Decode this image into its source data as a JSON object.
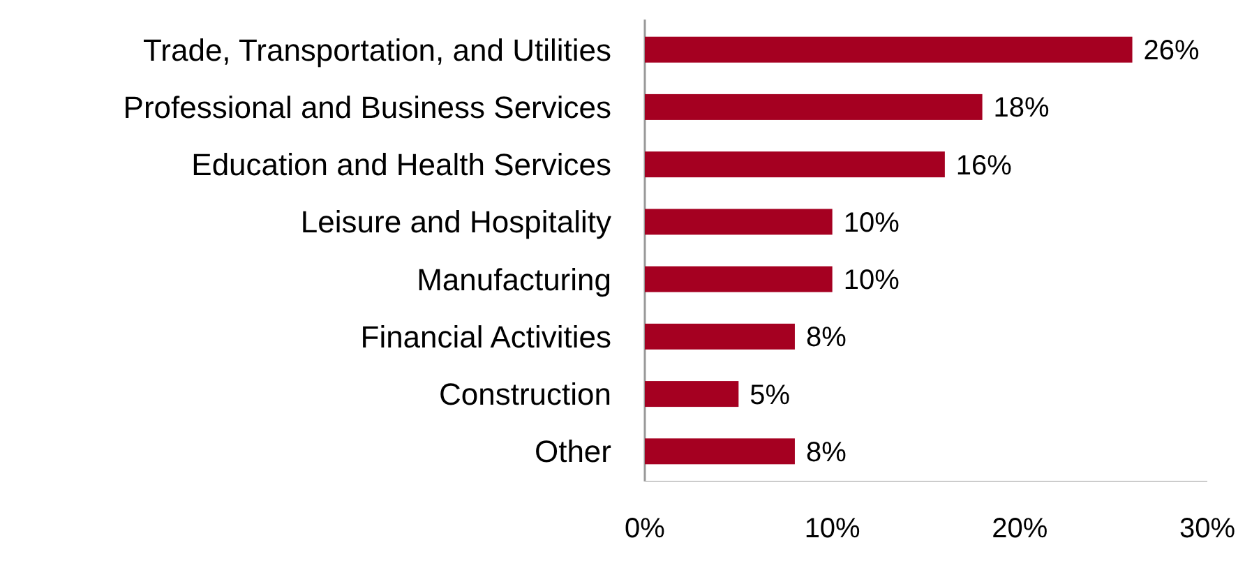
{
  "chart_data": {
    "type": "bar",
    "orientation": "horizontal",
    "categories": [
      "Trade, Transportation, and Utilities",
      "Professional and Business Services",
      "Education and Health Services",
      "Leisure and Hospitality",
      "Manufacturing",
      "Financial Activities",
      "Construction",
      "Other"
    ],
    "values": [
      26,
      18,
      16,
      10,
      10,
      8,
      5,
      8
    ],
    "value_labels": [
      "26%",
      "18%",
      "16%",
      "10%",
      "10%",
      "8%",
      "5%",
      "8%"
    ],
    "color": "#a50021",
    "xlim": [
      0,
      30
    ],
    "xticks": [
      {
        "value": 0,
        "label": "0%"
      },
      {
        "value": 10,
        "label": "10%"
      },
      {
        "value": 20,
        "label": "20%"
      },
      {
        "value": 30,
        "label": "30%"
      }
    ],
    "grid": false
  }
}
